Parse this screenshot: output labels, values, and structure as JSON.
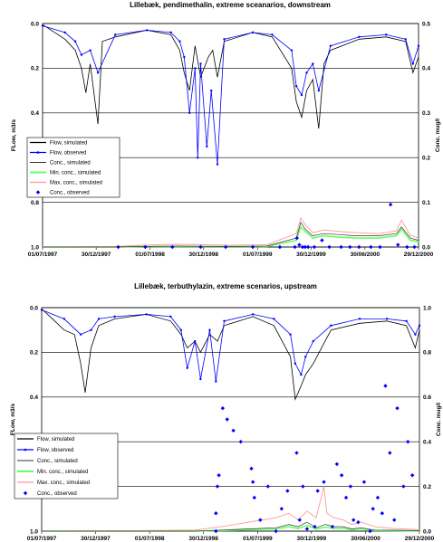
{
  "chart_data": [
    {
      "type": "line",
      "title": "Lillebæk, pendimethalin, extreme sceanarios, downstream",
      "ylabel": "FLow, m3/s",
      "y2label": "Conc. mug/l",
      "x_ticks": [
        "01/07/1997",
        "30/12/1997",
        "01/07/1998",
        "30/12/1998",
        "01/07/1999",
        "30/12/1999",
        "30/06/2000",
        "29/12/2000"
      ],
      "y_ticks": [
        "0.0",
        "0.2",
        "0.4",
        "0.6",
        "0.8",
        "1.0"
      ],
      "y2_ticks": [
        "0.5",
        "0.4",
        "0.3",
        "0.2",
        "0.1",
        "0.0"
      ],
      "ylim": [
        1.0,
        0.0
      ],
      "y2lim": [
        0.0,
        0.5
      ],
      "y_inverted": true,
      "grid": true,
      "legend_position": "left",
      "legend": [
        "Flow, simulated",
        "Flow, observed",
        "Conc., simulated",
        "Min. conc., simulated",
        "Max. conc., simulated",
        "Conc., observed"
      ],
      "series": [
        {
          "name": "Flow, simulated",
          "axis": "left",
          "x": [
            "1997-07-01",
            "1997-09-15",
            "1997-10-20",
            "1997-11-10",
            "1997-11-25",
            "1997-12-10",
            "1998-01-05",
            "1998-01-20",
            "1998-03-05",
            "1998-06-20",
            "1998-09-10",
            "1998-10-10",
            "1998-10-25",
            "1998-11-12",
            "1998-12-01",
            "1998-12-20",
            "1999-01-15",
            "1999-01-30",
            "1999-02-15",
            "1999-03-10",
            "1999-06-15",
            "1999-08-20",
            "1999-10-25",
            "1999-11-10",
            "1999-11-28",
            "1999-12-15",
            "2000-01-05",
            "2000-01-25",
            "2000-02-12",
            "2000-03-05",
            "2000-06-10",
            "2000-09-10",
            "2000-11-15",
            "2000-12-10",
            "2000-12-29"
          ],
          "values": [
            0.005,
            0.07,
            0.12,
            0.2,
            0.31,
            0.18,
            0.45,
            0.08,
            0.06,
            0.03,
            0.05,
            0.12,
            0.22,
            0.3,
            0.1,
            0.24,
            0.15,
            0.12,
            0.24,
            0.08,
            0.04,
            0.06,
            0.2,
            0.35,
            0.42,
            0.3,
            0.25,
            0.47,
            0.18,
            0.12,
            0.07,
            0.06,
            0.08,
            0.22,
            0.15
          ]
        },
        {
          "name": "Flow, observed",
          "axis": "left",
          "x": [
            "1997-07-01",
            "1997-09-15",
            "1997-10-20",
            "1997-11-10",
            "1997-12-10",
            "1998-01-05",
            "1998-03-05",
            "1998-06-20",
            "1998-09-10",
            "1998-10-10",
            "1998-10-25",
            "1998-11-12",
            "1998-12-01",
            "1998-12-10",
            "1998-12-20",
            "1999-01-10",
            "1999-01-25",
            "1999-02-15",
            "1999-03-10",
            "1999-06-15",
            "1999-08-20",
            "1999-10-25",
            "1999-11-10",
            "1999-11-28",
            "1999-12-15",
            "2000-01-05",
            "2000-01-25",
            "2000-03-05",
            "2000-06-10",
            "2000-09-10",
            "2000-11-15",
            "2000-12-10",
            "2000-12-29"
          ],
          "values": [
            0.01,
            0.04,
            0.08,
            0.14,
            0.12,
            0.22,
            0.05,
            0.03,
            0.04,
            0.08,
            0.15,
            0.4,
            0.2,
            0.6,
            0.18,
            0.55,
            0.3,
            0.63,
            0.07,
            0.04,
            0.05,
            0.12,
            0.28,
            0.32,
            0.22,
            0.18,
            0.3,
            0.1,
            0.06,
            0.05,
            0.07,
            0.18,
            0.1
          ]
        },
        {
          "name": "Conc., simulated",
          "axis": "right",
          "x": [
            "1997-07-01",
            "1998-03-01",
            "1998-06-01",
            "1998-10-01",
            "1999-04-01",
            "1999-08-01",
            "1999-11-10",
            "1999-11-25",
            "1999-12-10",
            "2000-01-05",
            "2000-02-10",
            "2000-04-01",
            "2000-06-01",
            "2000-08-15",
            "2000-10-15",
            "2000-11-01",
            "2000-12-01",
            "2000-12-29"
          ],
          "values": [
            0.0,
            0.0,
            0.001,
            0.002,
            0.001,
            0.002,
            0.02,
            0.055,
            0.04,
            0.025,
            0.03,
            0.028,
            0.025,
            0.025,
            0.03,
            0.045,
            0.02,
            0.015
          ]
        },
        {
          "name": "Min. conc., simulated",
          "axis": "right",
          "x": [
            "1997-07-01",
            "1998-03-01",
            "1998-06-01",
            "1998-10-01",
            "1999-04-01",
            "1999-08-01",
            "1999-11-10",
            "1999-11-25",
            "1999-12-10",
            "2000-01-05",
            "2000-02-10",
            "2000-04-01",
            "2000-06-01",
            "2000-08-15",
            "2000-10-15",
            "2000-11-01",
            "2000-12-01",
            "2000-12-29"
          ],
          "values": [
            0.0,
            0.0,
            0.001,
            0.001,
            0.001,
            0.001,
            0.015,
            0.045,
            0.035,
            0.02,
            0.025,
            0.022,
            0.02,
            0.02,
            0.025,
            0.04,
            0.015,
            0.012
          ]
        },
        {
          "name": "Max. conc., simulated",
          "axis": "right",
          "x": [
            "1997-07-01",
            "1998-03-01",
            "1998-06-01",
            "1998-10-01",
            "1999-04-01",
            "1999-08-01",
            "1999-11-10",
            "1999-11-25",
            "1999-12-10",
            "2000-01-05",
            "2000-02-10",
            "2000-04-01",
            "2000-06-01",
            "2000-08-15",
            "2000-10-15",
            "2000-11-01",
            "2000-12-01",
            "2000-12-29"
          ],
          "values": [
            0.0,
            0.001,
            0.004,
            0.006,
            0.004,
            0.005,
            0.03,
            0.065,
            0.05,
            0.032,
            0.038,
            0.035,
            0.032,
            0.03,
            0.036,
            0.06,
            0.026,
            0.02
          ]
        },
        {
          "name": "Conc., observed",
          "axis": "right",
          "x": [
            "1998-03-15",
            "1998-06-15",
            "1998-09-15",
            "1998-12-20",
            "1999-03-15",
            "1999-06-15",
            "1999-09-15",
            "1999-11-05",
            "1999-11-12",
            "1999-11-20",
            "1999-12-01",
            "1999-12-10",
            "1999-12-20",
            "2000-01-10",
            "2000-02-05",
            "2000-03-01",
            "2000-04-10",
            "2000-05-10",
            "2000-06-10",
            "2000-07-20",
            "2000-08-20",
            "2000-09-25",
            "2000-10-20",
            "2000-11-20",
            "2000-12-15"
          ],
          "values": [
            0.0,
            0.0,
            0.0,
            0.0,
            0.0,
            0.0,
            0.0,
            0.0,
            0.02,
            0.005,
            0.0,
            0.0,
            0.0,
            0.0,
            0.015,
            0.0,
            0.0,
            0.0,
            0.0,
            0.0,
            0.0,
            0.095,
            0.005,
            0.0,
            0.0
          ]
        }
      ]
    },
    {
      "type": "line",
      "title": "Lillebæk, terbuthylazin, extreme scenarios, upstream",
      "ylabel": "FLow, m3/s",
      "y2label": "Conc. mug/l",
      "x_ticks": [
        "01/07/1997",
        "30/12/1997",
        "01/07/1998",
        "30/12/1998",
        "01/07/1999",
        "30/12/1999",
        "30/06/2000",
        "29/12/2000"
      ],
      "y_ticks": [
        "0.0",
        "0.2",
        "0.4",
        "0.6",
        "0.8",
        "1.0"
      ],
      "y2_ticks": [
        "1.0",
        "0.8",
        "0.6",
        "0.4",
        "0.2",
        "0.0"
      ],
      "ylim": [
        1.0,
        0.0
      ],
      "y2lim": [
        0.0,
        1.0
      ],
      "y_inverted": true,
      "grid": true,
      "legend_position": "left",
      "legend": [
        "Flow, simulated",
        "Flow, observed",
        "Conc., simulated",
        "Min. conc., simulated",
        "Max. conc., simulated",
        "Conc., observed"
      ],
      "series": [
        {
          "name": "Flow, simulated",
          "axis": "left",
          "x": [
            "1997-07-01",
            "1997-09-15",
            "1997-10-20",
            "1997-11-10",
            "1997-11-25",
            "1997-12-15",
            "1998-01-10",
            "1998-03-05",
            "1998-06-20",
            "1998-09-10",
            "1998-10-15",
            "1998-11-05",
            "1998-12-01",
            "1998-12-20",
            "1999-01-20",
            "1999-02-15",
            "1999-03-10",
            "1999-06-15",
            "1999-08-25",
            "1999-10-20",
            "1999-11-05",
            "1999-11-25",
            "1999-12-10",
            "2000-01-05",
            "2000-01-25",
            "2000-03-05",
            "2000-06-10",
            "2000-09-10",
            "2000-11-15",
            "2000-12-15",
            "2000-12-29"
          ],
          "values": [
            0.005,
            0.1,
            0.12,
            0.25,
            0.38,
            0.18,
            0.08,
            0.05,
            0.03,
            0.06,
            0.12,
            0.18,
            0.15,
            0.2,
            0.12,
            0.15,
            0.08,
            0.04,
            0.08,
            0.22,
            0.41,
            0.35,
            0.3,
            0.25,
            0.2,
            0.1,
            0.07,
            0.06,
            0.08,
            0.18,
            0.1
          ]
        },
        {
          "name": "Flow, observed",
          "axis": "left",
          "x": [
            "1997-07-01",
            "1997-09-15",
            "1997-11-10",
            "1997-12-15",
            "1998-01-10",
            "1998-03-05",
            "1998-06-20",
            "1998-09-10",
            "1998-10-15",
            "1998-11-05",
            "1998-12-01",
            "1998-12-20",
            "1999-01-20",
            "1999-02-10",
            "1999-03-10",
            "1999-06-15",
            "1999-08-25",
            "1999-10-20",
            "1999-11-05",
            "1999-11-25",
            "1999-12-10",
            "2000-01-05",
            "2000-03-05",
            "2000-06-10",
            "2000-09-10",
            "2000-11-15",
            "2000-12-15",
            "2000-12-29"
          ],
          "values": [
            0.01,
            0.05,
            0.12,
            0.1,
            0.05,
            0.04,
            0.03,
            0.04,
            0.1,
            0.27,
            0.15,
            0.32,
            0.1,
            0.33,
            0.06,
            0.03,
            0.05,
            0.12,
            0.25,
            0.3,
            0.22,
            0.15,
            0.08,
            0.05,
            0.05,
            0.06,
            0.12,
            0.08
          ]
        },
        {
          "name": "Conc., simulated",
          "axis": "right",
          "x": [
            "1997-07-01",
            "1998-06-01",
            "1998-12-01",
            "1999-03-01",
            "1999-06-01",
            "1999-09-01",
            "1999-10-15",
            "1999-11-15",
            "1999-12-15",
            "2000-01-15",
            "2000-02-15",
            "2000-03-15",
            "2000-04-15",
            "2000-05-15",
            "2000-06-15",
            "2000-08-01",
            "2000-10-01",
            "2000-12-29"
          ],
          "values": [
            0.0,
            0.0,
            0.0,
            0.005,
            0.01,
            0.015,
            0.03,
            0.02,
            0.04,
            0.015,
            0.03,
            0.02,
            0.02,
            0.01,
            0.015,
            0.005,
            0.004,
            0.002
          ]
        },
        {
          "name": "Min. conc., simulated",
          "axis": "right",
          "x": [
            "1997-07-01",
            "1998-06-01",
            "1998-12-01",
            "1999-03-01",
            "1999-06-01",
            "1999-09-01",
            "1999-10-15",
            "1999-11-15",
            "1999-12-15",
            "2000-01-15",
            "2000-02-15",
            "2000-03-15",
            "2000-04-15",
            "2000-05-15",
            "2000-06-15",
            "2000-08-01",
            "2000-10-01",
            "2000-12-29"
          ],
          "values": [
            0.0,
            0.0,
            0.0,
            0.003,
            0.006,
            0.01,
            0.02,
            0.012,
            0.025,
            0.01,
            0.018,
            0.012,
            0.012,
            0.006,
            0.01,
            0.003,
            0.002,
            0.001
          ]
        },
        {
          "name": "Max. conc., simulated",
          "axis": "right",
          "x": [
            "1997-07-01",
            "1998-06-01",
            "1998-12-01",
            "1999-03-01",
            "1999-06-01",
            "1999-09-01",
            "1999-10-15",
            "1999-11-15",
            "1999-12-15",
            "2000-01-15",
            "2000-02-10",
            "2000-02-20",
            "2000-03-15",
            "2000-04-15",
            "2000-05-15",
            "2000-06-15",
            "2000-08-01",
            "2000-10-01",
            "2000-12-29"
          ],
          "values": [
            0.0,
            0.002,
            0.005,
            0.02,
            0.04,
            0.06,
            0.08,
            0.05,
            0.09,
            0.06,
            0.2,
            0.08,
            0.06,
            0.05,
            0.03,
            0.04,
            0.02,
            0.012,
            0.006
          ]
        },
        {
          "name": "Conc., observed",
          "axis": "right",
          "x": [
            "1999-02-10",
            "1999-02-10",
            "1999-02-15",
            "1999-02-20",
            "1999-03-05",
            "1999-03-20",
            "1999-04-10",
            "1999-05-05",
            "1999-06-10",
            "1999-06-15",
            "1999-06-20",
            "1999-07-10",
            "1999-08-05",
            "1999-09-01",
            "1999-09-20",
            "1999-10-10",
            "1999-11-10",
            "1999-11-20",
            "1999-12-01",
            "1999-12-15",
            "2000-01-10",
            "2000-01-20",
            "2000-02-10",
            "2000-03-10",
            "2000-03-25",
            "2000-04-10",
            "2000-04-25",
            "2000-05-10",
            "2000-05-20",
            "2000-06-05",
            "2000-06-25",
            "2000-07-15",
            "2000-07-25",
            "2000-08-10",
            "2000-08-25",
            "2000-09-05",
            "2000-09-20",
            "2000-10-05",
            "2000-10-15",
            "2000-11-05",
            "2000-11-20",
            "2000-12-05"
          ],
          "values": [
            0.0,
            0.08,
            0.2,
            0.25,
            0.55,
            0.5,
            0.45,
            0.4,
            0.28,
            0.22,
            0.15,
            0.05,
            0.2,
            0.0,
            0.1,
            0.18,
            0.35,
            0.05,
            0.2,
            0.01,
            0.02,
            0.18,
            0.22,
            0.02,
            0.3,
            0.25,
            0.15,
            0.2,
            0.05,
            0.04,
            0.22,
            0.0,
            0.1,
            0.15,
            0.08,
            0.65,
            0.35,
            0.05,
            0.55,
            0.2,
            0.4,
            0.25
          ]
        }
      ]
    }
  ]
}
